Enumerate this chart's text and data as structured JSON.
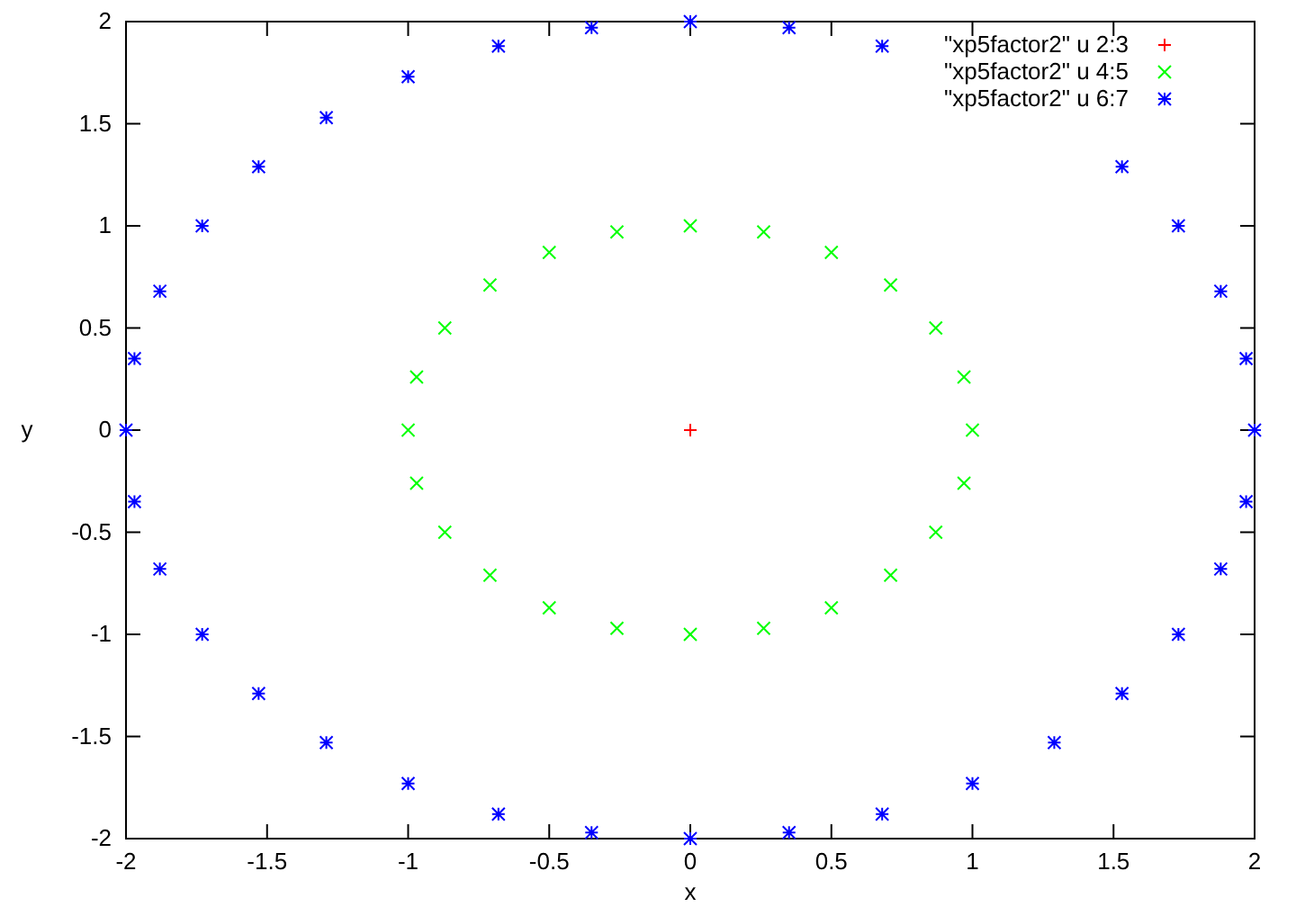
{
  "chart_data": {
    "type": "scatter",
    "xlabel": "x",
    "ylabel": "y",
    "xlim": [
      -2,
      2
    ],
    "ylim": [
      -2,
      2
    ],
    "xticks": [
      -2,
      -1.5,
      -1,
      -0.5,
      0,
      0.5,
      1,
      1.5,
      2
    ],
    "yticks": [
      -2,
      -1.5,
      -1,
      -0.5,
      0,
      0.5,
      1,
      1.5,
      2
    ],
    "legend": "top right",
    "grid": false,
    "series": [
      {
        "name": "\"xp5factor2\" u 2:3",
        "color": "#ff0000",
        "marker": "cross",
        "x": [
          0
        ],
        "values": [
          0
        ]
      },
      {
        "name": "\"xp5factor2\" u 4:5",
        "color": "#00ff00",
        "marker": "cross",
        "x": [
          1,
          0.97,
          0.87,
          0.71,
          0.5,
          0.26,
          0,
          -0.26,
          -0.5,
          -0.71,
          -0.87,
          -0.97,
          -1,
          -0.97,
          -0.87,
          -0.71,
          -0.5,
          -0.26,
          0,
          0.26,
          0.5,
          0.71,
          0.87,
          0.97
        ],
        "values": [
          0,
          0.26,
          0.5,
          0.71,
          0.87,
          0.97,
          1,
          0.97,
          0.87,
          0.71,
          0.5,
          0.26,
          0,
          -0.26,
          -0.5,
          -0.71,
          -0.87,
          -0.97,
          -1,
          -0.97,
          -0.87,
          -0.71,
          -0.5,
          -0.26
        ]
      },
      {
        "name": "\"xp5factor2\" u 6:7",
        "color": "#0000ff",
        "marker": "cross",
        "x": [
          2,
          1.97,
          1.88,
          1.73,
          1.53,
          0.68,
          0.35,
          0,
          -0.35,
          -0.68,
          -1,
          -1.29,
          -1.53,
          -1.73,
          -1.88,
          -1.97,
          -2,
          -1.97,
          -1.88,
          -1.73,
          -1.53,
          -1.29,
          -1,
          -0.68,
          -0.35,
          0,
          0.35,
          0.68,
          1,
          1.29,
          1.53,
          1.73,
          1.88,
          1.97
        ],
        "values": [
          0,
          0.35,
          0.68,
          1,
          1.29,
          1.88,
          1.97,
          2,
          1.97,
          1.88,
          1.73,
          1.53,
          1.29,
          1,
          0.68,
          0.35,
          0,
          -0.35,
          -0.68,
          -1,
          -1.29,
          -1.53,
          -1.73,
          -1.88,
          -1.97,
          -2,
          -1.97,
          -1.88,
          -1.73,
          -1.53,
          -1.29,
          -1,
          -0.68,
          -0.35
        ]
      }
    ]
  }
}
